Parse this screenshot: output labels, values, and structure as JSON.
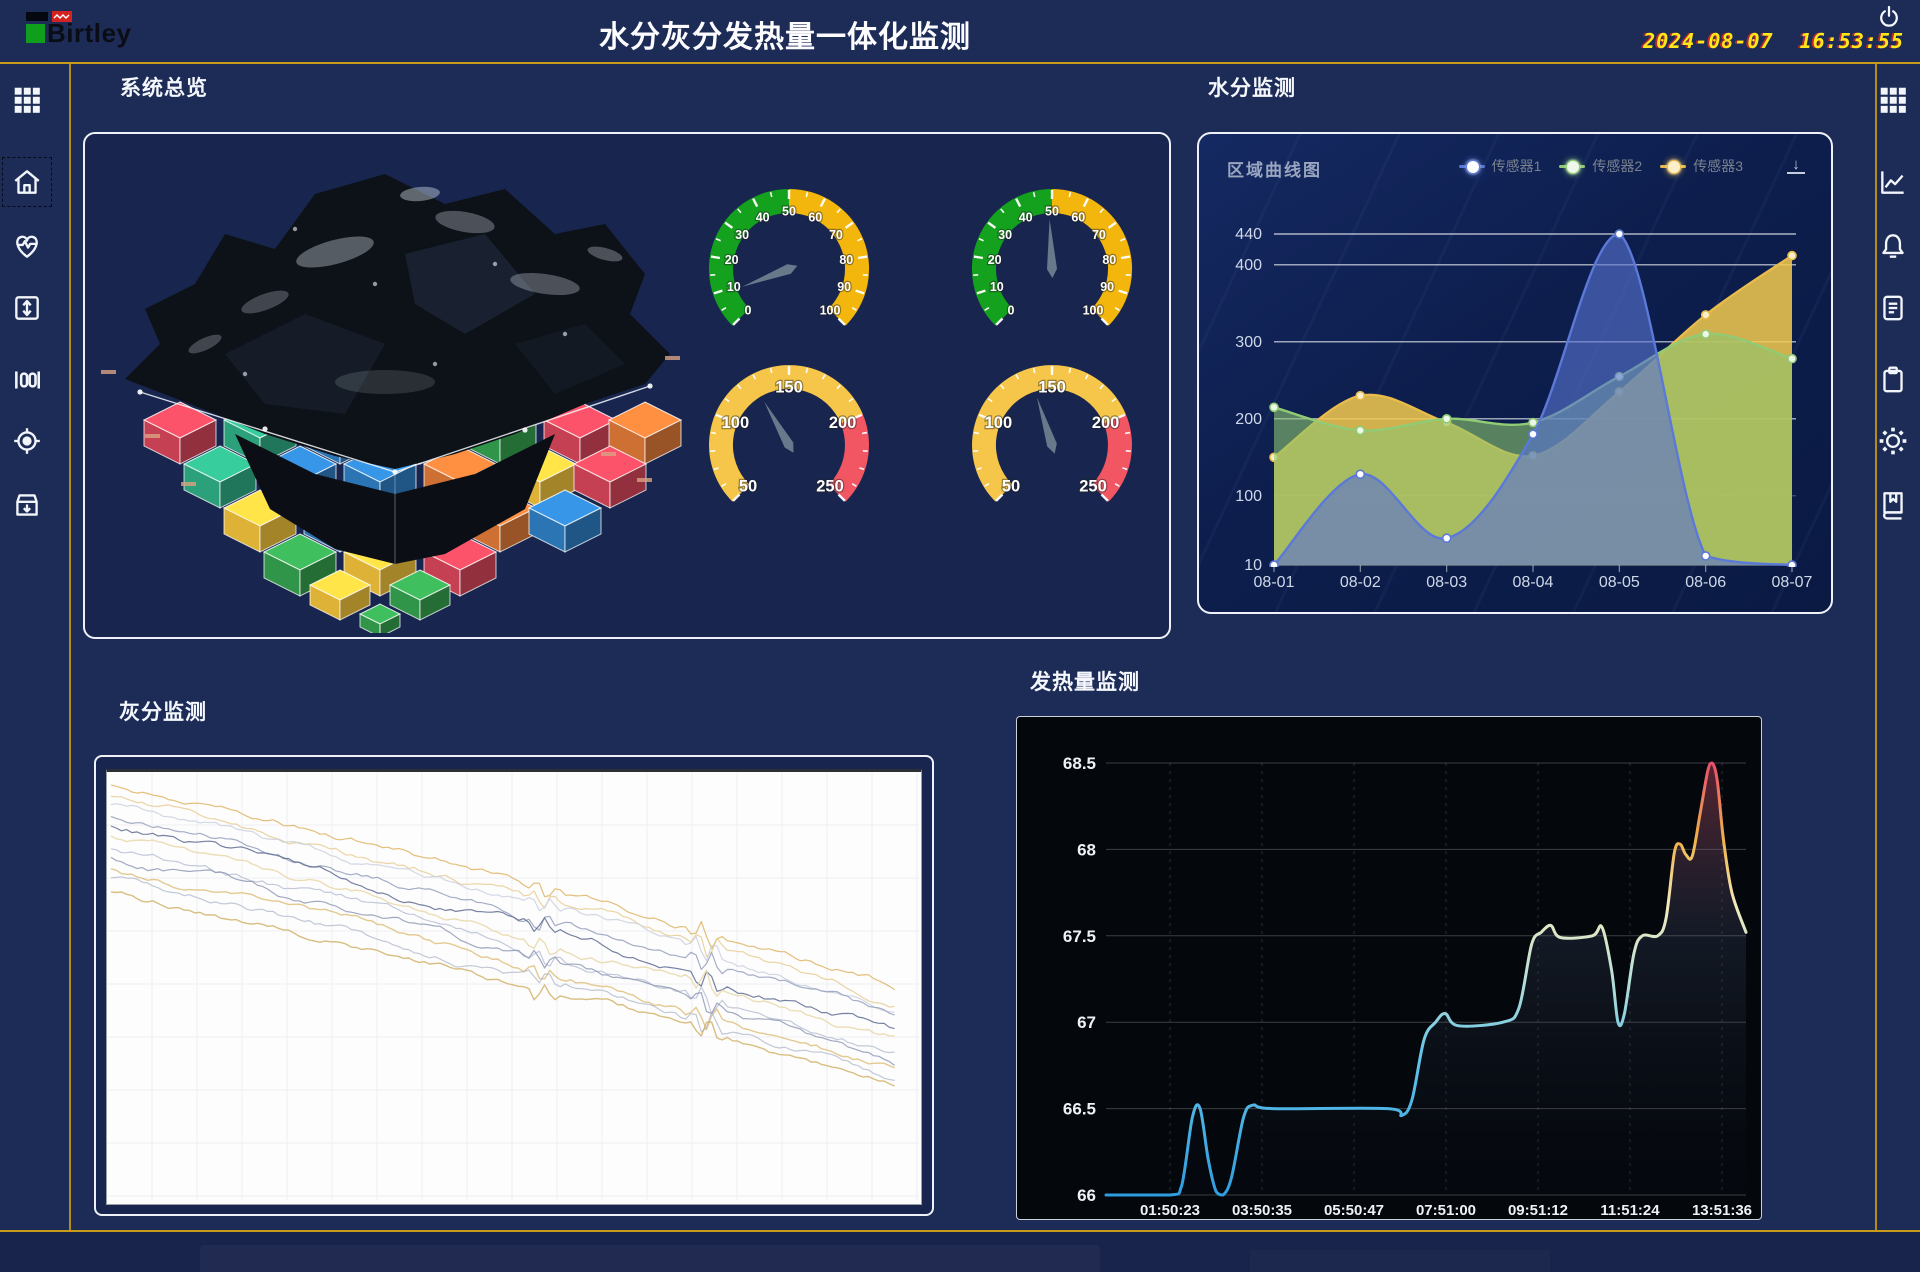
{
  "header": {
    "logo_text": "Birtley",
    "title": "水分灰分发热量一体化监测",
    "datetime": "2024-08-07  16:53:55"
  },
  "sidebar_left": {
    "items": [
      {
        "icon": "grid-icon",
        "selected": false
      },
      {
        "icon": "home-icon",
        "selected": true
      },
      {
        "icon": "heartbeat-icon",
        "selected": false
      },
      {
        "icon": "vertical-range-icon",
        "selected": false
      },
      {
        "icon": "gauge-bars-icon",
        "selected": false
      },
      {
        "icon": "target-icon",
        "selected": false
      },
      {
        "icon": "archive-download-icon",
        "selected": false
      }
    ]
  },
  "sidebar_right": {
    "items": [
      {
        "icon": "grid-icon",
        "selected": false
      },
      {
        "icon": "line-chart-icon",
        "selected": false
      },
      {
        "icon": "bell-icon",
        "selected": false
      },
      {
        "icon": "document-icon",
        "selected": false
      },
      {
        "icon": "clipboard-icon",
        "selected": false
      },
      {
        "icon": "gear-icon",
        "selected": false
      },
      {
        "icon": "book-bookmark-icon",
        "selected": false
      }
    ]
  },
  "panels": {
    "overview": {
      "title": "系统总览"
    },
    "moisture": {
      "title": "水分监测"
    },
    "ash": {
      "title": "灰分监测"
    },
    "calorific": {
      "title": "发热量监测"
    }
  },
  "colors": {
    "accent_gold": "#c89b18",
    "panel_border": "#eef2f8",
    "background": "#1d2b57",
    "clock_yellow": "#ffe81a",
    "coal_blocks_palette": [
      "#d6465a",
      "#2fae85",
      "#2f7fc4",
      "#35a24f",
      "#e07a38",
      "#f0c23c"
    ]
  },
  "chart_data": [
    {
      "id": "moisture-area",
      "type": "area",
      "title": "区域曲线图",
      "categories": [
        "08-01",
        "08-02",
        "08-03",
        "08-04",
        "08-05",
        "08-06",
        "08-07"
      ],
      "series": [
        {
          "name": "传感器1",
          "color": "#5b79d8",
          "fill": "rgba(88,114,208,0.62)",
          "dot": "#ffffff",
          "values": [
            10,
            128,
            45,
            180,
            440,
            22,
            10
          ]
        },
        {
          "name": "传感器2",
          "color": "#91cc75",
          "fill": "rgba(140,196,110,0.60)",
          "dot": "#eef8ea",
          "values": [
            215,
            185,
            200,
            195,
            255,
            310,
            278
          ]
        },
        {
          "name": "传感器3",
          "color": "#e8bb4a",
          "fill": "rgba(244,202,79,0.85)",
          "dot": "#fdf0c8",
          "values": [
            150,
            230,
            195,
            152,
            235,
            335,
            412
          ]
        }
      ],
      "ylim": [
        10,
        440
      ],
      "yticks": [
        10,
        100,
        200,
        300,
        400,
        440
      ],
      "legend_position": "top-right",
      "grid": true
    },
    {
      "id": "calorific-line",
      "type": "line",
      "categories": [
        "01:50:23",
        "03:50:35",
        "05:50:47",
        "07:51:00",
        "09:51:12",
        "11:51:24",
        "13:51:36"
      ],
      "ylim": [
        66,
        68.5
      ],
      "yticks": [
        66,
        66.5,
        67,
        67.5,
        68,
        68.5
      ],
      "grid": "horizontal-solid vertical-dashed",
      "line_gradient": [
        "#e6506b",
        "#f0b44a",
        "#f2eabc",
        "#b8e0d8",
        "#63c3e8",
        "#2f9de0"
      ],
      "points": [
        [
          0,
          66
        ],
        [
          0.1,
          66
        ],
        [
          0.118,
          66.05
        ],
        [
          0.135,
          66.45
        ],
        [
          0.147,
          66.5
        ],
        [
          0.16,
          66.2
        ],
        [
          0.172,
          66.02
        ],
        [
          0.183,
          66.0
        ],
        [
          0.196,
          66.1
        ],
        [
          0.215,
          66.45
        ],
        [
          0.23,
          66.52
        ],
        [
          0.26,
          66.5
        ],
        [
          0.44,
          66.5
        ],
        [
          0.462,
          66.46
        ],
        [
          0.478,
          66.55
        ],
        [
          0.497,
          66.9
        ],
        [
          0.515,
          67.0
        ],
        [
          0.53,
          67.05
        ],
        [
          0.55,
          66.98
        ],
        [
          0.62,
          67.0
        ],
        [
          0.645,
          67.08
        ],
        [
          0.665,
          67.45
        ],
        [
          0.68,
          67.52
        ],
        [
          0.695,
          67.56
        ],
        [
          0.71,
          67.49
        ],
        [
          0.76,
          67.5
        ],
        [
          0.775,
          67.55
        ],
        [
          0.79,
          67.3
        ],
        [
          0.8,
          67.0
        ],
        [
          0.81,
          67.05
        ],
        [
          0.825,
          67.4
        ],
        [
          0.838,
          67.5
        ],
        [
          0.862,
          67.5
        ],
        [
          0.875,
          67.6
        ],
        [
          0.888,
          67.98
        ],
        [
          0.897,
          68.03
        ],
        [
          0.906,
          67.97
        ],
        [
          0.916,
          67.96
        ],
        [
          0.928,
          68.2
        ],
        [
          0.94,
          68.45
        ],
        [
          0.947,
          68.5
        ],
        [
          0.955,
          68.4
        ],
        [
          0.965,
          68.05
        ],
        [
          0.978,
          67.75
        ],
        [
          1,
          67.52
        ]
      ]
    },
    {
      "id": "ash-lines",
      "type": "line",
      "grid": true,
      "x_extent": 0.965,
      "disturbances": [
        0.55,
        0.76
      ],
      "series": [
        {
          "color": "#d9a94e",
          "start": 0.03,
          "end": 0.5,
          "opacity": 0.75,
          "width": 1.2
        },
        {
          "color": "#e6c98c",
          "start": 0.055,
          "end": 0.53,
          "opacity": 0.8,
          "width": 1.2
        },
        {
          "color": "#cdd3e0",
          "start": 0.08,
          "end": 0.55,
          "opacity": 0.9,
          "width": 1.2
        },
        {
          "color": "#9aa4c0",
          "start": 0.1,
          "end": 0.575,
          "opacity": 0.9,
          "width": 1.2
        },
        {
          "color": "#5f6b92",
          "start": 0.125,
          "end": 0.6,
          "opacity": 0.85,
          "width": 1.2
        },
        {
          "color": "#e8d7a8",
          "start": 0.15,
          "end": 0.63,
          "opacity": 0.85,
          "width": 1.4
        },
        {
          "color": "#b9c0d4",
          "start": 0.175,
          "end": 0.655,
          "opacity": 0.85,
          "width": 1.2
        },
        {
          "color": "#8a94b2",
          "start": 0.2,
          "end": 0.68,
          "opacity": 0.8,
          "width": 1.2
        },
        {
          "color": "#dfc07e",
          "start": 0.225,
          "end": 0.7,
          "opacity": 0.85,
          "width": 1.4
        },
        {
          "color": "#a8b0c6",
          "start": 0.25,
          "end": 0.715,
          "opacity": 0.7,
          "width": 1.2
        },
        {
          "color": "#cfae62",
          "start": 0.285,
          "end": 0.73,
          "opacity": 0.8,
          "width": 1.4
        }
      ]
    },
    {
      "id": "gauge-top-left",
      "type": "gauge",
      "min": 0,
      "max": 100,
      "value": 9,
      "bands": [
        {
          "from": 0,
          "to": 50,
          "color": "#14a11e"
        },
        {
          "from": 50,
          "to": 100,
          "color": "#f3b60c"
        }
      ],
      "tick_step": 10,
      "minor_step": 5,
      "labels": [
        0,
        10,
        20,
        30,
        40,
        50,
        60,
        70,
        80,
        90,
        100
      ]
    },
    {
      "id": "gauge-top-right",
      "type": "gauge",
      "min": 0,
      "max": 100,
      "value": 49,
      "bands": [
        {
          "from": 0,
          "to": 50,
          "color": "#14a11e"
        },
        {
          "from": 50,
          "to": 100,
          "color": "#f3b60c"
        }
      ],
      "tick_step": 10,
      "minor_step": 5,
      "labels": [
        0,
        10,
        20,
        30,
        40,
        50,
        60,
        70,
        80,
        90,
        100
      ]
    },
    {
      "id": "gauge-bottom-left",
      "type": "gauge",
      "min": 50,
      "max": 250,
      "value": 128,
      "bands": [
        {
          "from": 50,
          "to": 200,
          "color": "#f6c64a"
        },
        {
          "from": 200,
          "to": 250,
          "color": "#f25663"
        }
      ],
      "tick_step": 50,
      "minor_step": 10,
      "labels": [
        50,
        100,
        150,
        200,
        250
      ]
    },
    {
      "id": "gauge-bottom-right",
      "type": "gauge",
      "min": 50,
      "max": 250,
      "value": 137,
      "bands": [
        {
          "from": 50,
          "to": 200,
          "color": "#f6c64a"
        },
        {
          "from": 200,
          "to": 250,
          "color": "#f25663"
        }
      ],
      "tick_step": 50,
      "minor_step": 10,
      "labels": [
        50,
        100,
        150,
        200,
        250
      ]
    }
  ]
}
